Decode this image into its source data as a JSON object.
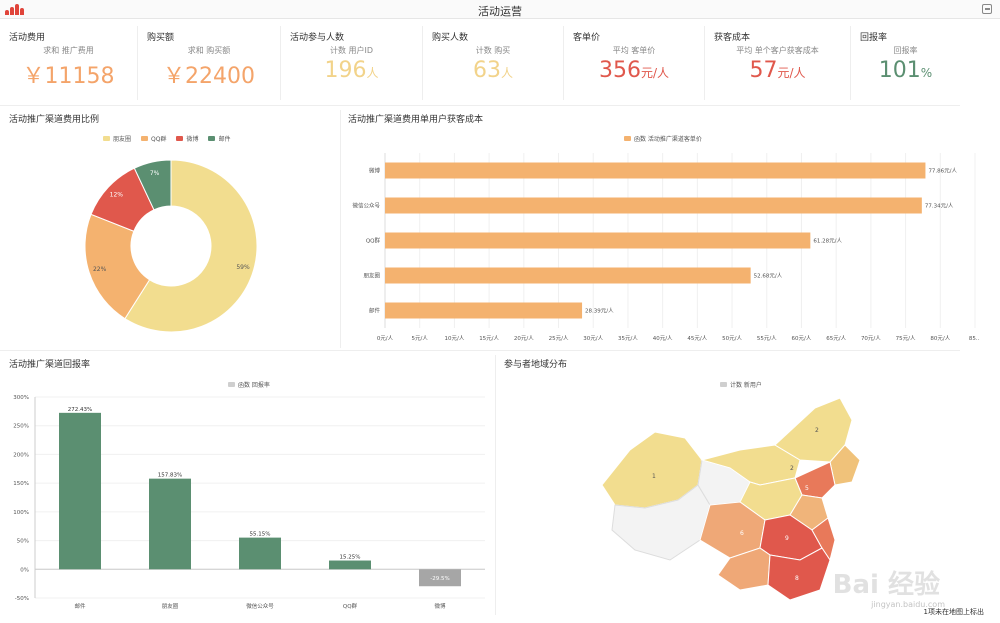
{
  "app": {
    "title": "活动运营"
  },
  "colors": {
    "orange": "#f4b26f",
    "yellow": "#f2dd8f",
    "red": "#e0584c",
    "green": "#5b8f71",
    "gray": "#a6a6a6"
  },
  "kpis": [
    {
      "title": "活动费用",
      "sub": "求和 推广费用",
      "prefix": "￥",
      "value": "11158",
      "unit": "",
      "color": "#f4a46a"
    },
    {
      "title": "购买额",
      "sub": "求和 购买额",
      "prefix": "￥",
      "value": "22400",
      "unit": "",
      "color": "#f4a46a"
    },
    {
      "title": "活动参与人数",
      "sub": "计数 用户ID",
      "prefix": "",
      "value": "196",
      "unit": "人",
      "color": "#f2d38a"
    },
    {
      "title": "购买人数",
      "sub": "计数 购买",
      "prefix": "",
      "value": "63",
      "unit": "人",
      "color": "#f2d38a"
    },
    {
      "title": "客单价",
      "sub": "平均 客单价",
      "prefix": "",
      "value": "356",
      "unit": "元/人",
      "color": "#e0584c"
    },
    {
      "title": "获客成本",
      "sub": "平均 单个客户获客成本",
      "prefix": "",
      "value": "57",
      "unit": "元/人",
      "color": "#e0584c"
    },
    {
      "title": "回报率",
      "sub": "回报率",
      "prefix": "",
      "value": "101",
      "unit": "%",
      "color": "#5b8f71"
    }
  ],
  "panels": {
    "pie_title": "活动推广渠道费用比例",
    "bar_title": "活动推广渠道费用单用户获客成本",
    "col_title": "活动推广渠道回报率",
    "map_title": "参与者地域分布"
  },
  "chart_data": [
    {
      "type": "pie",
      "legend": [
        "朋友圈",
        "QQ群",
        "微博",
        "邮件"
      ],
      "values": [
        59,
        22,
        12,
        7
      ],
      "labels": [
        "59%",
        "22%",
        "12%",
        "7%"
      ],
      "colors": [
        "#f2dd8f",
        "#f4b26f",
        "#e0584c",
        "#5b8f71"
      ]
    },
    {
      "type": "bar",
      "legend": "函数 活动推广渠道客单价",
      "categories": [
        "微博",
        "微信公众号",
        "QQ群",
        "朋友圈",
        "邮件"
      ],
      "values": [
        77.86,
        77.34,
        61.28,
        52.68,
        28.39
      ],
      "labels": [
        "77.86元/人",
        "77.34元/人",
        "61.28元/人",
        "52.68元/人",
        "28.39元/人"
      ],
      "xticks": [
        "0元/人",
        "5元/人",
        "10元/人",
        "15元/人",
        "20元/人",
        "25元/人",
        "30元/人",
        "35元/人",
        "40元/人",
        "45元/人",
        "50元/人",
        "55元/人",
        "60元/人",
        "65元/人",
        "70元/人",
        "75元/人",
        "80元/人",
        "85..."
      ],
      "xlim": [
        0,
        85
      ]
    },
    {
      "type": "bar",
      "legend": "函数 回报率",
      "categories": [
        "邮件",
        "朋友圈",
        "微信公众号",
        "QQ群",
        "微博"
      ],
      "values": [
        272.43,
        157.83,
        55.15,
        15.25,
        -29.5
      ],
      "labels": [
        "272.43%",
        "157.83%",
        "55.15%",
        "15.25%",
        "-29.5%"
      ],
      "yticks": [
        "300%",
        "250%",
        "200%",
        "150%",
        "100%",
        "50%",
        "0%",
        "-50%"
      ],
      "ylim": [
        -50,
        300
      ]
    }
  ],
  "map": {
    "legend": "计数 新用户",
    "footnote": "1项未在地图上标出"
  },
  "watermark": {
    "brand": "Bai 经验",
    "url": "jingyan.baidu.com"
  }
}
